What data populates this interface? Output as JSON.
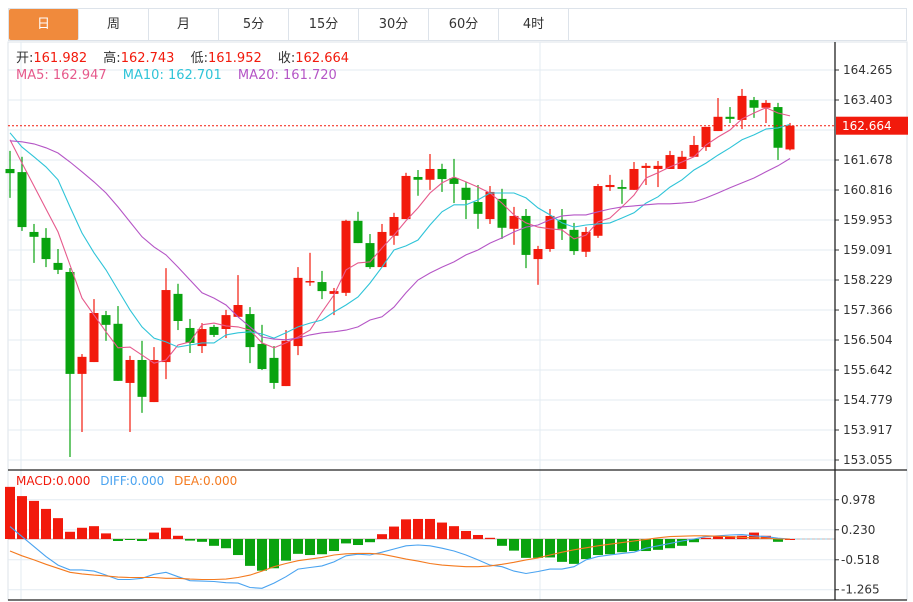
{
  "tabs": [
    {
      "label": "日",
      "active": true
    },
    {
      "label": "周",
      "active": false
    },
    {
      "label": "月",
      "active": false
    },
    {
      "label": "5分",
      "active": false
    },
    {
      "label": "15分",
      "active": false
    },
    {
      "label": "30分",
      "active": false
    },
    {
      "label": "60分",
      "active": false
    },
    {
      "label": "4时",
      "active": false
    }
  ],
  "ohlc_info": {
    "open_label": "开:",
    "open": "161.982",
    "high_label": "高:",
    "high": "162.743",
    "low_label": "低:",
    "low": "161.952",
    "close_label": "收:",
    "close": "162.664"
  },
  "ma_info": {
    "ma5": "MA5: 162.947",
    "ma10": "MA10: 162.701",
    "ma20": "MA20: 161.720"
  },
  "macd_info": {
    "macd": "MACD:0.000",
    "diff": "DIFF:0.000",
    "dea": "DEA:0.000"
  },
  "colors": {
    "up": "#f21a0c",
    "down": "#09a30f",
    "ma5": "#e65a8c",
    "ma10": "#2fc4d8",
    "ma20": "#b556c6",
    "diff": "#4aa3f0",
    "dea": "#f47a1f",
    "tab_active": "#f08a3c"
  },
  "chart_data": [
    {
      "type": "candlestick",
      "title": "",
      "ylim": [
        153.055,
        164.265
      ],
      "y_ticks": [
        "164.265",
        "163.403",
        "161.678",
        "160.816",
        "159.953",
        "159.091",
        "158.229",
        "157.366",
        "156.504",
        "155.642",
        "154.779",
        "153.917",
        "153.055"
      ],
      "last_price": "162.664",
      "candles": [
        [
          161.42,
          161.94,
          160.59,
          161.3
        ],
        [
          161.33,
          161.77,
          159.64,
          159.75
        ],
        [
          159.61,
          159.84,
          158.72,
          159.47
        ],
        [
          159.44,
          159.72,
          158.6,
          158.83
        ],
        [
          158.72,
          159.12,
          158.4,
          158.52
        ],
        [
          158.46,
          158.57,
          153.14,
          155.53
        ],
        [
          155.53,
          156.1,
          153.86,
          156.02
        ],
        [
          155.87,
          157.68,
          155.87,
          157.28
        ],
        [
          157.22,
          157.34,
          156.48,
          156.94
        ],
        [
          156.97,
          157.48,
          155.33,
          155.33
        ],
        [
          155.27,
          156.05,
          153.86,
          155.93
        ],
        [
          155.93,
          156.48,
          154.41,
          154.87
        ],
        [
          154.72,
          156.3,
          154.72,
          155.93
        ],
        [
          155.87,
          158.57,
          155.38,
          157.94
        ],
        [
          157.83,
          158.12,
          156.79,
          157.05
        ],
        [
          156.85,
          157.11,
          156.13,
          156.42
        ],
        [
          156.33,
          156.99,
          156.13,
          156.82
        ],
        [
          156.88,
          156.94,
          156.59,
          156.65
        ],
        [
          156.82,
          157.37,
          156.56,
          157.22
        ],
        [
          157.17,
          158.37,
          157.17,
          157.51
        ],
        [
          157.25,
          157.45,
          155.84,
          156.3
        ],
        [
          156.39,
          156.94,
          155.64,
          155.67
        ],
        [
          155.99,
          156.33,
          155.1,
          155.27
        ],
        [
          155.18,
          156.79,
          155.18,
          156.48
        ],
        [
          156.33,
          158.6,
          156.07,
          158.29
        ],
        [
          158.17,
          159.01,
          158.06,
          158.2
        ],
        [
          158.17,
          158.49,
          157.68,
          157.91
        ],
        [
          157.83,
          158.0,
          157.22,
          157.91
        ],
        [
          157.86,
          159.96,
          157.77,
          159.93
        ],
        [
          159.93,
          160.19,
          159.29,
          159.29
        ],
        [
          159.29,
          159.55,
          158.55,
          158.6
        ],
        [
          158.6,
          159.84,
          158.6,
          159.61
        ],
        [
          159.5,
          160.16,
          159.24,
          160.04
        ],
        [
          159.98,
          161.31,
          159.98,
          161.22
        ],
        [
          161.19,
          161.39,
          160.65,
          161.11
        ],
        [
          161.11,
          161.85,
          160.82,
          161.42
        ],
        [
          161.42,
          161.57,
          160.76,
          161.13
        ],
        [
          161.16,
          161.71,
          160.44,
          160.99
        ],
        [
          160.88,
          161.05,
          159.98,
          160.53
        ],
        [
          160.47,
          160.96,
          159.7,
          160.13
        ],
        [
          159.98,
          160.93,
          159.84,
          160.76
        ],
        [
          160.56,
          160.85,
          159.41,
          159.73
        ],
        [
          159.7,
          160.33,
          159.24,
          160.07
        ],
        [
          160.07,
          160.27,
          158.57,
          158.95
        ],
        [
          158.83,
          159.21,
          158.09,
          159.12
        ],
        [
          159.12,
          160.27,
          159.04,
          160.07
        ],
        [
          159.96,
          160.27,
          159.38,
          159.7
        ],
        [
          159.67,
          159.87,
          158.95,
          159.06
        ],
        [
          159.04,
          159.75,
          158.89,
          159.61
        ],
        [
          159.5,
          160.99,
          159.44,
          160.93
        ],
        [
          160.9,
          161.25,
          160.79,
          160.96
        ],
        [
          160.9,
          161.11,
          160.42,
          160.85
        ],
        [
          160.82,
          161.62,
          160.82,
          161.42
        ],
        [
          161.45,
          161.59,
          160.96,
          161.51
        ],
        [
          161.42,
          161.65,
          160.9,
          161.51
        ],
        [
          161.42,
          161.94,
          161.42,
          161.82
        ],
        [
          161.42,
          161.94,
          161.42,
          161.77
        ],
        [
          161.77,
          162.37,
          161.77,
          162.11
        ],
        [
          162.05,
          162.63,
          161.94,
          162.63
        ],
        [
          162.51,
          163.46,
          162.51,
          162.92
        ],
        [
          162.92,
          163.2,
          162.74,
          162.86
        ],
        [
          162.83,
          163.72,
          162.57,
          163.52
        ],
        [
          163.4,
          163.49,
          162.89,
          163.18
        ],
        [
          163.18,
          163.4,
          162.74,
          163.32
        ],
        [
          163.2,
          163.32,
          161.68,
          162.03
        ],
        [
          161.982,
          162.743,
          161.952,
          162.664
        ]
      ],
      "candle_fields": [
        "open",
        "high",
        "low",
        "close"
      ],
      "series": [
        {
          "name": "MA5",
          "values": [
            162.26,
            161.59,
            160.93,
            160.27,
            159.61,
            158.66,
            157.71,
            157.22,
            156.74,
            156.28,
            156.3,
            156.07,
            155.84,
            155.93,
            156.36,
            156.45,
            156.94,
            156.99,
            156.91,
            156.88,
            156.79,
            156.42,
            156.28,
            156.42,
            156.59,
            156.79,
            157.31,
            157.8,
            158.52,
            158.72,
            158.75,
            159.15,
            159.52,
            159.93,
            160.3,
            160.73,
            161.02,
            161.19,
            161.05,
            160.9,
            160.73,
            160.44,
            160.1,
            159.87,
            159.75,
            159.7,
            159.67,
            159.41,
            159.52,
            159.9,
            160.01,
            160.33,
            160.67,
            161.16,
            161.31,
            161.48,
            161.62,
            161.77,
            162.11,
            162.34,
            162.54,
            162.86,
            163.03,
            163.18,
            163.03,
            162.947
          ]
        },
        {
          "name": "MA10",
          "values": [
            162.46,
            162.05,
            161.77,
            161.48,
            161.11,
            160.33,
            159.58,
            159.01,
            158.52,
            157.94,
            157.37,
            156.88,
            156.56,
            156.45,
            156.3,
            156.36,
            156.42,
            156.42,
            156.65,
            156.71,
            156.74,
            156.68,
            156.56,
            156.71,
            156.88,
            156.99,
            157.08,
            157.31,
            157.51,
            157.74,
            158.14,
            158.6,
            159.09,
            159.21,
            159.38,
            159.81,
            160.19,
            160.39,
            160.39,
            160.53,
            160.73,
            160.73,
            160.73,
            160.59,
            160.3,
            160.1,
            159.87,
            159.75,
            159.81,
            159.84,
            159.87,
            160.01,
            160.16,
            160.44,
            160.62,
            160.9,
            161.11,
            161.39,
            161.59,
            161.82,
            162.03,
            162.26,
            162.4,
            162.57,
            162.6,
            162.701
          ]
        },
        {
          "name": "MA20",
          "values": [
            162.23,
            162.2,
            162.14,
            162.03,
            161.88,
            161.62,
            161.34,
            161.05,
            160.73,
            160.33,
            159.9,
            159.47,
            159.18,
            158.95,
            158.6,
            158.23,
            157.86,
            157.71,
            157.51,
            157.17,
            156.88,
            156.59,
            156.53,
            156.51,
            156.56,
            156.65,
            156.71,
            156.74,
            156.79,
            156.88,
            157.08,
            157.17,
            157.45,
            157.86,
            158.23,
            158.43,
            158.6,
            158.75,
            158.95,
            159.09,
            159.29,
            159.44,
            159.61,
            159.75,
            159.81,
            159.96,
            160.07,
            160.1,
            160.1,
            160.19,
            160.27,
            160.33,
            160.36,
            160.39,
            160.42,
            160.42,
            160.44,
            160.47,
            160.59,
            160.73,
            160.88,
            161.02,
            161.16,
            161.34,
            161.51,
            161.72
          ]
        }
      ]
    },
    {
      "type": "bar+line",
      "title": "MACD",
      "ylim": [
        -1.265,
        1.3
      ],
      "y_ticks": [
        "0.978",
        "0.230",
        "-0.518",
        "-1.265"
      ],
      "macd": [
        1.3,
        1.07,
        0.95,
        0.75,
        0.52,
        0.18,
        0.28,
        0.32,
        0.14,
        -0.05,
        -0.02,
        -0.05,
        0.16,
        0.28,
        0.08,
        -0.04,
        -0.07,
        -0.17,
        -0.23,
        -0.4,
        -0.67,
        -0.79,
        -0.73,
        -0.54,
        -0.37,
        -0.4,
        -0.38,
        -0.3,
        -0.11,
        -0.15,
        -0.08,
        0.12,
        0.31,
        0.49,
        0.5,
        0.5,
        0.41,
        0.32,
        0.2,
        0.1,
        0.03,
        -0.17,
        -0.29,
        -0.47,
        -0.47,
        -0.46,
        -0.57,
        -0.62,
        -0.5,
        -0.4,
        -0.38,
        -0.33,
        -0.3,
        -0.3,
        -0.27,
        -0.23,
        -0.17,
        -0.08,
        0.03,
        0.08,
        0.07,
        0.08,
        0.16,
        0.08,
        -0.07,
        0.0
      ],
      "series": [
        {
          "name": "DIFF",
          "values": [
            0.31,
            0.06,
            -0.19,
            -0.44,
            -0.65,
            -0.77,
            -0.77,
            -0.8,
            -0.9,
            -1.01,
            -1.01,
            -0.98,
            -0.88,
            -0.83,
            -0.94,
            -1.04,
            -1.05,
            -1.06,
            -1.09,
            -1.1,
            -1.21,
            -1.23,
            -1.1,
            -0.94,
            -0.75,
            -0.71,
            -0.67,
            -0.57,
            -0.42,
            -0.38,
            -0.4,
            -0.33,
            -0.25,
            -0.17,
            -0.15,
            -0.17,
            -0.23,
            -0.3,
            -0.4,
            -0.52,
            -0.65,
            -0.69,
            -0.8,
            -0.86,
            -0.81,
            -0.75,
            -0.75,
            -0.69,
            -0.52,
            -0.44,
            -0.4,
            -0.36,
            -0.33,
            -0.23,
            -0.17,
            -0.11,
            -0.05,
            0.0,
            0.06,
            0.08,
            0.1,
            0.11,
            0.08,
            0.06,
            0.02,
            0.0
          ]
        },
        {
          "name": "DEA",
          "values": [
            -0.3,
            -0.42,
            -0.52,
            -0.63,
            -0.73,
            -0.83,
            -0.87,
            -0.9,
            -0.92,
            -0.95,
            -0.96,
            -0.96,
            -0.96,
            -0.98,
            -0.98,
            -1.0,
            -1.01,
            -1.01,
            -1.0,
            -0.96,
            -0.9,
            -0.8,
            -0.69,
            -0.61,
            -0.54,
            -0.5,
            -0.46,
            -0.4,
            -0.37,
            -0.36,
            -0.36,
            -0.38,
            -0.44,
            -0.5,
            -0.55,
            -0.61,
            -0.65,
            -0.67,
            -0.69,
            -0.69,
            -0.67,
            -0.63,
            -0.58,
            -0.52,
            -0.47,
            -0.4,
            -0.33,
            -0.27,
            -0.22,
            -0.17,
            -0.13,
            -0.09,
            -0.05,
            -0.01,
            0.03,
            0.06,
            0.07,
            0.08,
            0.08,
            0.07,
            0.06,
            0.04,
            0.03,
            0.02,
            0.0,
            0.0
          ]
        }
      ]
    }
  ]
}
